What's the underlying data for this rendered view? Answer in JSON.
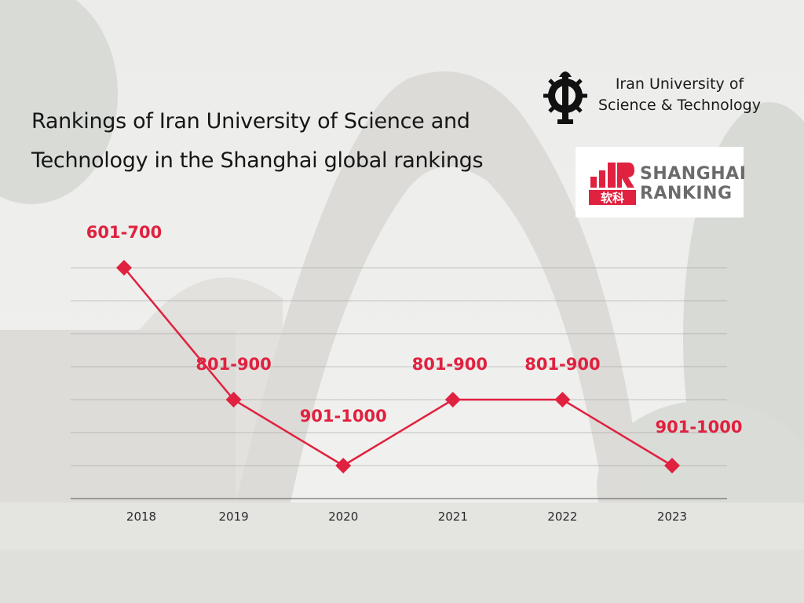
{
  "title": {
    "line1": "Rankings of Iran University of Science and",
    "line2": "Technology in the Shanghai global rankings"
  },
  "logos": {
    "iust": {
      "line1": "Iran University of",
      "line2": "Science & Technology",
      "icon": "iust-emblem-icon"
    },
    "shanghai": {
      "line1": "SHANGHAI",
      "line2": "RANKING",
      "brand_glyph": "软科",
      "icon": "shanghai-ranking-logo-icon"
    }
  },
  "colors": {
    "series": "#e0213f",
    "grid": "#9a9a9a"
  },
  "chart_data": {
    "type": "line",
    "x": [
      "2018",
      "2019",
      "2020",
      "2021",
      "2022",
      "2023"
    ],
    "series": [
      {
        "values": [
          "601-700",
          "801-900",
          "901-1000",
          "801-900",
          "801-900",
          "901-1000"
        ]
      }
    ],
    "y_rank_order": [
      "601-700",
      "801-900",
      "901-1000"
    ],
    "y_axis_inverted": true,
    "grid": true,
    "xlabel": "",
    "ylabel": ""
  }
}
